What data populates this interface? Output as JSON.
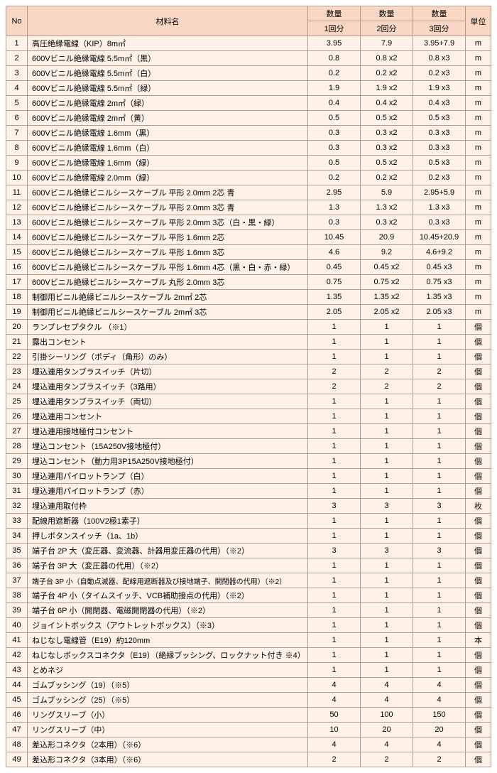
{
  "header": {
    "no": "No",
    "name": "材料名",
    "qty": "数量",
    "sub1": "1回分",
    "sub2": "2回分",
    "sub3": "3回分",
    "unit": "単位"
  },
  "units": {
    "m": "m",
    "ko": "個",
    "mai": "枚",
    "hon": "本"
  },
  "rows": [
    {
      "no": 1,
      "name": "高圧絶縁電線（KIP）8m㎡",
      "q1": "3.95",
      "q2": "7.9",
      "q3": "3.95+7.9",
      "u": "m"
    },
    {
      "no": 2,
      "name": "600Vビニル絶縁電線 5.5m㎡（黒）",
      "q1": "0.8",
      "q2": "0.8 x2",
      "q3": "0.8 x3",
      "u": "m"
    },
    {
      "no": 3,
      "name": "600Vビニル絶縁電線 5.5m㎡（白）",
      "q1": "0.2",
      "q2": "0.2 x2",
      "q3": "0.2 x3",
      "u": "m"
    },
    {
      "no": 4,
      "name": "600Vビニル絶縁電線 5.5m㎡（緑）",
      "q1": "1.9",
      "q2": "1.9 x2",
      "q3": "1.9 x3",
      "u": "m"
    },
    {
      "no": 5,
      "name": "600Vビニル絶縁電線 2m㎡（緑）",
      "q1": "0.4",
      "q2": "0.4 x2",
      "q3": "0.4 x3",
      "u": "m"
    },
    {
      "no": 6,
      "name": "600Vビニル絶縁電線 2m㎡（黄）",
      "q1": "0.5",
      "q2": "0.5 x2",
      "q3": "0.5 x3",
      "u": "m"
    },
    {
      "no": 7,
      "name": "600Vビニル絶縁電線 1.6mm（黒）",
      "q1": "0.3",
      "q2": "0.3 x2",
      "q3": "0.3 x3",
      "u": "m"
    },
    {
      "no": 8,
      "name": "600Vビニル絶縁電線 1.6mm（白）",
      "q1": "0.3",
      "q2": "0.3 x2",
      "q3": "0.3 x3",
      "u": "m"
    },
    {
      "no": 9,
      "name": "600Vビニル絶縁電線 1.6mm（緑）",
      "q1": "0.5",
      "q2": "0.5 x2",
      "q3": "0.5 x3",
      "u": "m"
    },
    {
      "no": 10,
      "name": "600Vビニル絶縁電線 2.0mm（緑）",
      "q1": "0.2",
      "q2": "0.2 x2",
      "q3": "0.2 x3",
      "u": "m"
    },
    {
      "no": 11,
      "name": "600Vビニル絶縁ビニルシースケーブル 平形 2.0mm 2芯 青",
      "q1": "2.95",
      "q2": "5.9",
      "q3": "2.95+5.9",
      "u": "m"
    },
    {
      "no": 12,
      "name": "600Vビニル絶縁ビニルシースケーブル 平形 2.0mm 3芯 青",
      "q1": "1.3",
      "q2": "1.3 x2",
      "q3": "1.3 x3",
      "u": "m"
    },
    {
      "no": 13,
      "name": "600Vビニル絶縁ビニルシースケーブル 平形 2.0mm 3芯（白・黒・緑）",
      "q1": "0.3",
      "q2": "0.3 x2",
      "q3": "0.3 x3",
      "u": "m"
    },
    {
      "no": 14,
      "name": "600Vビニル絶縁ビニルシースケーブル 平形 1.6mm 2芯",
      "q1": "10.45",
      "q2": "20.9",
      "q3": "10.45+20.9",
      "u": "m"
    },
    {
      "no": 15,
      "name": "600Vビニル絶縁ビニルシースケーブル 平形 1.6mm 3芯",
      "q1": "4.6",
      "q2": "9.2",
      "q3": "4.6+9.2",
      "u": "m"
    },
    {
      "no": 16,
      "name": "600Vビニル絶縁ビニルシースケーブル 平形 1.6mm 4芯（黒・白・赤・緑）",
      "q1": "0.45",
      "q2": "0.45 x2",
      "q3": "0.45 x3",
      "u": "m"
    },
    {
      "no": 17,
      "name": "600Vビニル絶縁ビニルシースケーブル 丸形 2.0mm 3芯",
      "q1": "0.75",
      "q2": "0.75 x2",
      "q3": "0.75 x3",
      "u": "m"
    },
    {
      "no": 18,
      "name": "制御用ビニル絶縁ビニルシースケーブル 2m㎡ 2芯",
      "q1": "1.35",
      "q2": "1.35 x2",
      "q3": "1.35 x3",
      "u": "m"
    },
    {
      "no": 19,
      "name": "制御用ビニル絶縁ビニルシースケーブル 2m㎡ 3芯",
      "q1": "2.05",
      "q2": "2.05 x2",
      "q3": "2.05 x3",
      "u": "m"
    },
    {
      "no": 20,
      "name": "ランプレセプタクル （※1）",
      "q1": "1",
      "q2": "1",
      "q3": "1",
      "u": "ko"
    },
    {
      "no": 21,
      "name": "露出コンセント",
      "q1": "1",
      "q2": "1",
      "q3": "1",
      "u": "ko"
    },
    {
      "no": 22,
      "name": "引掛シーリング（ボディ（角形）のみ）",
      "q1": "1",
      "q2": "1",
      "q3": "1",
      "u": "ko"
    },
    {
      "no": 23,
      "name": "埋込連用タンブラスイッチ（片切）",
      "q1": "2",
      "q2": "2",
      "q3": "2",
      "u": "ko"
    },
    {
      "no": 24,
      "name": "埋込連用タンブラスイッチ（3路用）",
      "q1": "2",
      "q2": "2",
      "q3": "2",
      "u": "ko"
    },
    {
      "no": 25,
      "name": "埋込連用タンブラスイッチ（両切）",
      "q1": "1",
      "q2": "1",
      "q3": "1",
      "u": "ko"
    },
    {
      "no": 26,
      "name": "埋込連用コンセント",
      "q1": "1",
      "q2": "1",
      "q3": "1",
      "u": "ko"
    },
    {
      "no": 27,
      "name": "埋込連用接地極付コンセント",
      "q1": "1",
      "q2": "1",
      "q3": "1",
      "u": "ko"
    },
    {
      "no": 28,
      "name": "埋込コンセント（15A250V接地極付）",
      "q1": "1",
      "q2": "1",
      "q3": "1",
      "u": "ko"
    },
    {
      "no": 29,
      "name": "埋込コンセント（動力用3P15A250V接地極付）",
      "q1": "1",
      "q2": "1",
      "q3": "1",
      "u": "ko"
    },
    {
      "no": 30,
      "name": "埋込連用パイロットランプ（白）",
      "q1": "1",
      "q2": "1",
      "q3": "1",
      "u": "ko"
    },
    {
      "no": 31,
      "name": "埋込連用パイロットランプ（赤）",
      "q1": "1",
      "q2": "1",
      "q3": "1",
      "u": "ko"
    },
    {
      "no": 32,
      "name": "埋込連用取付枠",
      "q1": "3",
      "q2": "3",
      "q3": "3",
      "u": "mai"
    },
    {
      "no": 33,
      "name": "配線用遮断器（100V2極1素子）",
      "q1": "1",
      "q2": "1",
      "q3": "1",
      "u": "ko"
    },
    {
      "no": 34,
      "name": "押しボタンスイッチ（1a、1b）",
      "q1": "1",
      "q2": "1",
      "q3": "1",
      "u": "ko"
    },
    {
      "no": 35,
      "name": "端子台 2P 大（変圧器、変流器、計器用変圧器の代用）（※2）",
      "q1": "3",
      "q2": "3",
      "q3": "3",
      "u": "ko"
    },
    {
      "no": 36,
      "name": "端子台 3P 大（変圧器の代用）（※2）",
      "q1": "1",
      "q2": "1",
      "q3": "1",
      "u": "ko"
    },
    {
      "no": 37,
      "name": "端子台 3P 小（自動点滅器、配線用遮断器及び接地端子、開閉器の代用）（※2）",
      "q1": "1",
      "q2": "1",
      "q3": "1",
      "u": "ko",
      "small": true
    },
    {
      "no": 38,
      "name": "端子台 4P 小（タイムスイッチ、VCB補助接点の代用）（※2）",
      "q1": "1",
      "q2": "1",
      "q3": "1",
      "u": "ko"
    },
    {
      "no": 39,
      "name": "端子台 6P 小（開閉器、電磁開閉器の代用）（※2）",
      "q1": "1",
      "q2": "1",
      "q3": "1",
      "u": "ko"
    },
    {
      "no": 40,
      "name": "ジョイントボックス（アウトレットボックス）（※3）",
      "q1": "1",
      "q2": "1",
      "q3": "1",
      "u": "ko"
    },
    {
      "no": 41,
      "name": "ねじなし電線管（E19）約120mm",
      "q1": "1",
      "q2": "1",
      "q3": "1",
      "u": "hon"
    },
    {
      "no": 42,
      "name": "ねじなしボックスコネクタ（E19）（絶縁ブッシング、ロックナット付き ※4）",
      "q1": "1",
      "q2": "1",
      "q3": "1",
      "u": "ko"
    },
    {
      "no": 43,
      "name": "とめネジ",
      "q1": "1",
      "q2": "1",
      "q3": "1",
      "u": "ko"
    },
    {
      "no": 44,
      "name": "ゴムブッシング（19）（※5）",
      "q1": "4",
      "q2": "4",
      "q3": "4",
      "u": "ko"
    },
    {
      "no": 45,
      "name": "ゴムブッシング（25）（※5）",
      "q1": "4",
      "q2": "4",
      "q3": "4",
      "u": "ko"
    },
    {
      "no": 46,
      "name": "リングスリーブ（小）",
      "q1": "50",
      "q2": "100",
      "q3": "150",
      "u": "ko"
    },
    {
      "no": 47,
      "name": "リングスリーブ（中）",
      "q1": "10",
      "q2": "20",
      "q3": "20",
      "u": "ko"
    },
    {
      "no": 48,
      "name": "差込形コネクタ（2本用）（※6）",
      "q1": "4",
      "q2": "4",
      "q3": "4",
      "u": "ko"
    },
    {
      "no": 49,
      "name": "差込形コネクタ（3本用）（※6）",
      "q1": "2",
      "q2": "2",
      "q3": "2",
      "u": "ko"
    }
  ]
}
